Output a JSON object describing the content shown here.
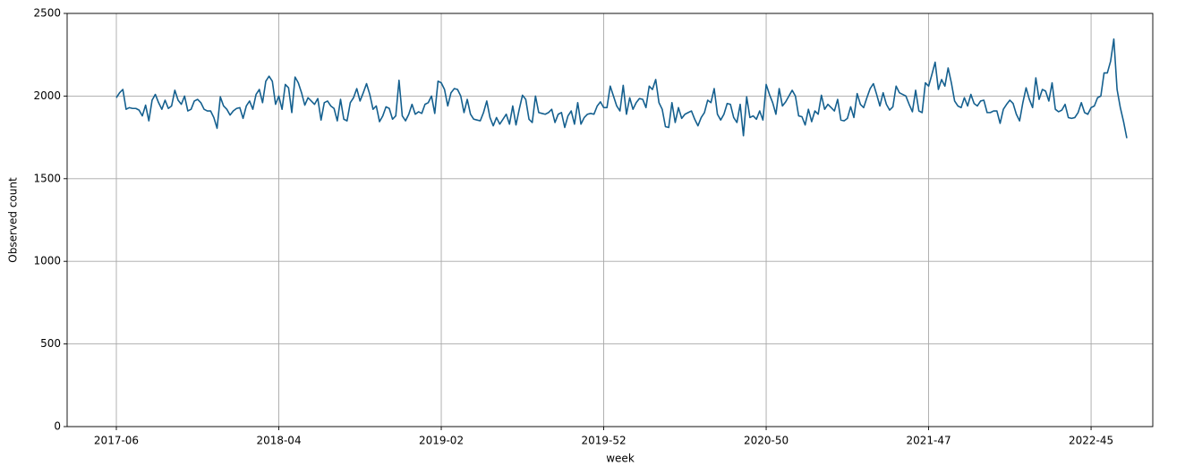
{
  "chart_data": {
    "type": "line",
    "xlabel": "week",
    "ylabel": "Observed count",
    "categories": [
      "2017-06",
      null,
      null,
      null,
      null,
      null,
      null,
      null,
      null,
      null,
      null,
      null,
      null,
      null,
      null,
      null,
      null,
      null,
      null,
      null,
      null,
      null,
      null,
      null,
      null,
      null,
      null,
      null,
      null,
      null,
      null,
      null,
      null,
      null,
      null,
      null,
      null,
      null,
      null,
      null,
      null,
      null,
      null,
      null,
      null,
      null,
      null,
      null,
      null,
      null,
      "2018-04",
      null,
      null,
      null,
      null,
      null,
      null,
      null,
      null,
      null,
      null,
      null,
      null,
      null,
      null,
      null,
      null,
      null,
      null,
      null,
      null,
      null,
      null,
      null,
      null,
      null,
      null,
      null,
      null,
      null,
      null,
      null,
      null,
      null,
      null,
      null,
      null,
      null,
      null,
      null,
      null,
      null,
      null,
      null,
      null,
      null,
      null,
      null,
      null,
      null,
      "2019-02",
      null,
      null,
      null,
      null,
      null,
      null,
      null,
      null,
      null,
      null,
      null,
      null,
      null,
      null,
      null,
      null,
      null,
      null,
      null,
      null,
      null,
      null,
      null,
      null,
      null,
      null,
      null,
      null,
      null,
      null,
      null,
      null,
      null,
      null,
      null,
      null,
      null,
      null,
      null,
      null,
      null,
      null,
      null,
      null,
      null,
      null,
      null,
      null,
      null,
      "2019-52",
      null,
      null,
      null,
      null,
      null,
      null,
      null,
      null,
      null,
      null,
      null,
      null,
      null,
      null,
      null,
      null,
      null,
      null,
      null,
      null,
      null,
      null,
      null,
      null,
      null,
      null,
      null,
      null,
      null,
      null,
      null,
      null,
      null,
      null,
      null,
      null,
      null,
      null,
      null,
      null,
      null,
      null,
      null,
      null,
      null,
      null,
      null,
      null,
      null,
      "2020-50",
      null,
      null,
      null,
      null,
      null,
      null,
      null,
      null,
      null,
      null,
      null,
      null,
      null,
      null,
      null,
      null,
      null,
      null,
      null,
      null,
      null,
      null,
      null,
      null,
      null,
      null,
      null,
      null,
      null,
      null,
      null,
      null,
      null,
      null,
      null,
      null,
      null,
      null,
      null,
      null,
      null,
      null,
      null,
      null,
      null,
      null,
      null,
      null,
      null,
      "2021-47",
      null,
      null,
      null,
      null,
      null,
      null,
      null,
      null,
      null,
      null,
      null,
      null,
      null,
      null,
      null,
      null,
      null,
      null,
      null,
      null,
      null,
      null,
      null,
      null,
      null,
      null,
      null,
      null,
      null,
      null,
      null,
      null,
      null,
      null,
      null,
      null,
      null,
      null,
      null,
      null,
      null,
      null,
      null,
      null,
      null,
      null,
      null,
      null,
      null,
      "2022-45",
      null,
      null,
      null,
      null,
      null,
      null,
      null,
      null,
      null,
      null,
      null
    ],
    "values": [
      1990,
      2020,
      2040,
      1920,
      1930,
      1925,
      1925,
      1915,
      1880,
      1945,
      1850,
      1975,
      2010,
      1960,
      1920,
      1975,
      1925,
      1940,
      2035,
      1975,
      1950,
      2000,
      1910,
      1920,
      1970,
      1980,
      1960,
      1920,
      1910,
      1910,
      1870,
      1805,
      1995,
      1940,
      1920,
      1885,
      1910,
      1925,
      1930,
      1865,
      1940,
      1970,
      1920,
      2010,
      2040,
      1960,
      2090,
      2120,
      2090,
      1950,
      2000,
      1920,
      2070,
      2050,
      1900,
      2115,
      2080,
      2020,
      1945,
      1990,
      1970,
      1950,
      1985,
      1855,
      1960,
      1970,
      1940,
      1925,
      1850,
      1980,
      1860,
      1850,
      1960,
      1990,
      2045,
      1970,
      2020,
      2075,
      2010,
      1920,
      1940,
      1845,
      1880,
      1935,
      1925,
      1860,
      1880,
      2095,
      1880,
      1850,
      1890,
      1950,
      1890,
      1905,
      1895,
      1950,
      1960,
      2000,
      1895,
      2090,
      2080,
      2040,
      1940,
      2020,
      2045,
      2040,
      2000,
      1900,
      1980,
      1890,
      1860,
      1855,
      1850,
      1900,
      1970,
      1870,
      1820,
      1870,
      1830,
      1860,
      1890,
      1830,
      1940,
      1825,
      1920,
      2005,
      1980,
      1860,
      1840,
      2000,
      1900,
      1895,
      1890,
      1900,
      1920,
      1840,
      1890,
      1900,
      1810,
      1880,
      1910,
      1830,
      1960,
      1830,
      1870,
      1890,
      1895,
      1890,
      1940,
      1965,
      1930,
      1930,
      2060,
      2000,
      1940,
      1910,
      2065,
      1890,
      1990,
      1920,
      1960,
      1985,
      1980,
      1930,
      2060,
      2040,
      2100,
      1960,
      1920,
      1815,
      1810,
      1960,
      1840,
      1930,
      1865,
      1890,
      1900,
      1910,
      1860,
      1820,
      1870,
      1900,
      1975,
      1960,
      2045,
      1890,
      1855,
      1890,
      1955,
      1950,
      1870,
      1840,
      1950,
      1760,
      1995,
      1870,
      1880,
      1860,
      1910,
      1855,
      2070,
      2010,
      1960,
      1890,
      2045,
      1940,
      1965,
      2000,
      2035,
      2000,
      1880,
      1875,
      1825,
      1920,
      1845,
      1910,
      1890,
      2005,
      1920,
      1950,
      1930,
      1910,
      1980,
      1855,
      1850,
      1865,
      1935,
      1870,
      2015,
      1950,
      1930,
      1990,
      2045,
      2075,
      2010,
      1940,
      2020,
      1950,
      1915,
      1935,
      2060,
      2020,
      2010,
      2000,
      1950,
      1905,
      2035,
      1910,
      1900,
      2080,
      2060,
      2130,
      2205,
      2040,
      2100,
      2060,
      2170,
      2080,
      1970,
      1940,
      1930,
      1990,
      1940,
      2010,
      1955,
      1940,
      1970,
      1975,
      1900,
      1900,
      1910,
      1910,
      1835,
      1920,
      1950,
      1975,
      1955,
      1890,
      1850,
      1960,
      2050,
      1980,
      1930,
      2110,
      1980,
      2040,
      2030,
      1970,
      2080,
      1920,
      1905,
      1915,
      1950,
      1870,
      1865,
      1870,
      1900,
      1960,
      1900,
      1890,
      1930,
      1940,
      1990,
      2000,
      2140,
      2140,
      2210,
      2345,
      2040,
      1930,
      1845,
      1745
    ],
    "color": "#15608f",
    "ylim": [
      0,
      2500
    ],
    "yticks": [
      0,
      500,
      1000,
      1500,
      2000,
      2500
    ],
    "grid": true
  }
}
